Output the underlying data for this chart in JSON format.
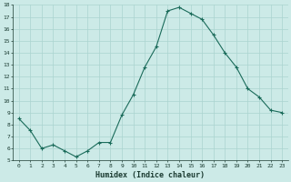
{
  "x": [
    0,
    1,
    2,
    3,
    4,
    5,
    6,
    7,
    8,
    9,
    10,
    11,
    12,
    13,
    14,
    15,
    16,
    17,
    18,
    19,
    20,
    21,
    22,
    23
  ],
  "y": [
    8.5,
    7.5,
    6.0,
    6.3,
    5.8,
    5.3,
    5.8,
    6.5,
    6.5,
    8.8,
    10.5,
    12.8,
    14.5,
    17.5,
    17.8,
    17.3,
    16.8,
    15.5,
    14.0,
    12.8,
    11.0,
    10.3,
    9.2,
    9.0
  ],
  "xlabel": "Humidex (Indice chaleur)",
  "ylim": [
    5,
    18
  ],
  "yticks": [
    5,
    6,
    7,
    8,
    9,
    10,
    11,
    12,
    13,
    14,
    15,
    16,
    17,
    18
  ],
  "xticks": [
    0,
    1,
    2,
    3,
    4,
    5,
    6,
    7,
    8,
    9,
    10,
    11,
    12,
    13,
    14,
    15,
    16,
    17,
    18,
    19,
    20,
    21,
    22,
    23
  ],
  "xtick_labels": [
    "0",
    "1",
    "2",
    "3",
    "4",
    "5",
    "6",
    "7",
    "8",
    "9",
    "10",
    "11",
    "12",
    "13",
    "14",
    "15",
    "16",
    "17",
    "18",
    "19",
    "20",
    "21",
    "22",
    "23"
  ],
  "line_color": "#1a6b5a",
  "marker": "+",
  "bg_color": "#cceae7",
  "grid_color": "#aad4d0",
  "xlabel_color": "#1a3a30",
  "tick_color": "#1a3a30"
}
